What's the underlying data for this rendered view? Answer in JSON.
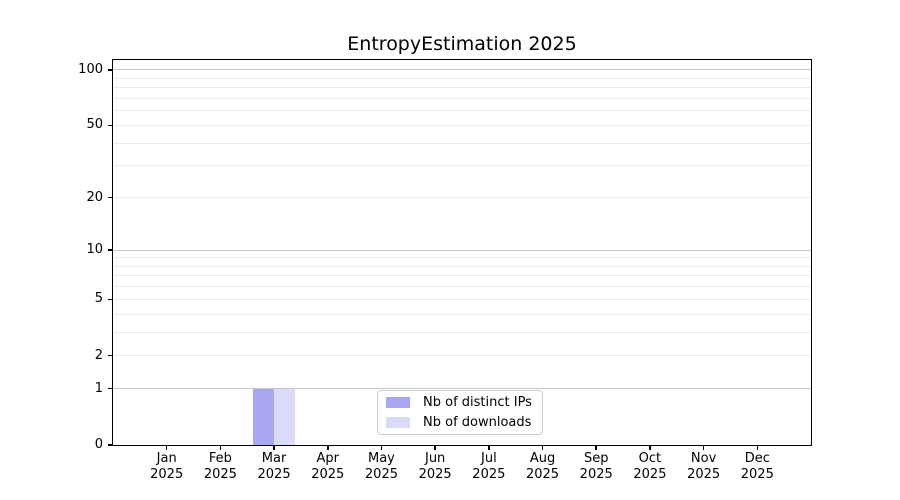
{
  "chart_data": {
    "type": "bar",
    "title": "EntropyEstimation 2025",
    "categories": [
      "Jan 2025",
      "Feb 2025",
      "Mar 2025",
      "Apr 2025",
      "May 2025",
      "Jun 2025",
      "Jul 2025",
      "Aug 2025",
      "Sep 2025",
      "Oct 2025",
      "Nov 2025",
      "Dec 2025"
    ],
    "series": [
      {
        "name": "Nb of distinct IPs",
        "color": "#a7a7f2",
        "values": [
          0,
          0,
          1,
          0,
          0,
          0,
          0,
          0,
          0,
          0,
          0,
          0
        ]
      },
      {
        "name": "Nb of downloads",
        "color": "#dadaf9",
        "values": [
          0,
          0,
          1,
          0,
          0,
          0,
          0,
          0,
          0,
          0,
          0,
          0
        ]
      }
    ],
    "yscale": "log1p",
    "ylim": [
      0,
      113
    ],
    "yticks": [
      0,
      1,
      2,
      5,
      10,
      20,
      50,
      100
    ],
    "grid": {
      "major": [
        1,
        10,
        100
      ],
      "minor": [
        2,
        3,
        4,
        5,
        6,
        7,
        8,
        9,
        20,
        30,
        40,
        50,
        60,
        70,
        80,
        90
      ]
    },
    "legend_position": "lower center"
  }
}
